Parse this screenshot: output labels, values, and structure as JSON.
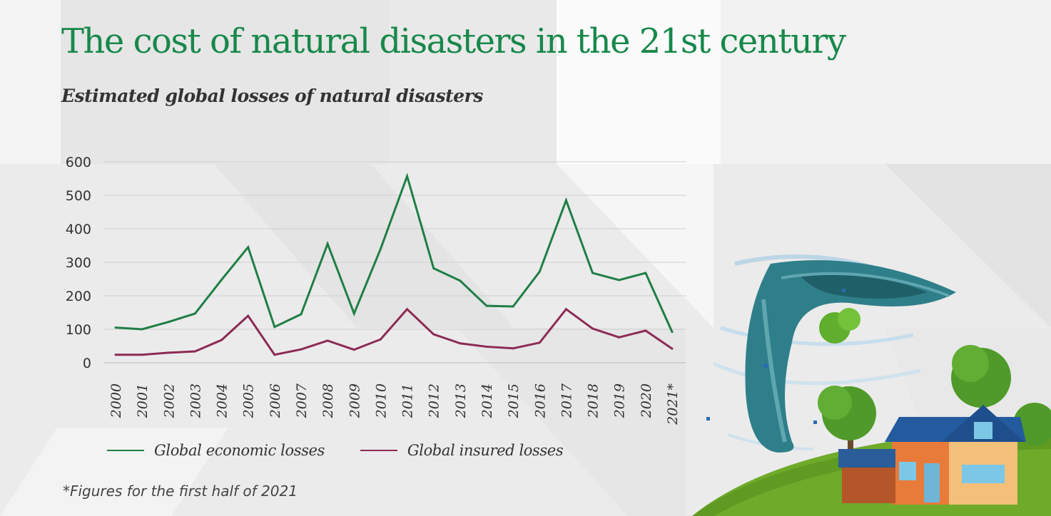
{
  "header": {
    "title": "The cost of natural disasters in the 21st century",
    "subtitle": "Estimated global losses of natural disasters"
  },
  "footnote": "*Figures for the first half of 2021",
  "colors": {
    "economic": "#1f7f45",
    "insured": "#8c2b55",
    "title": "#17884a",
    "grid": "#cfcfcf",
    "text": "#333333"
  },
  "chart_data": {
    "type": "line",
    "title": "",
    "xlabel": "",
    "ylabel": "",
    "categories": [
      "2000",
      "2001",
      "2002",
      "2003",
      "2004",
      "2005",
      "2006",
      "2007",
      "2008",
      "2009",
      "2010",
      "2011",
      "2012",
      "2013",
      "2014",
      "2015",
      "2016",
      "2017",
      "2018",
      "2019",
      "2020",
      "2021*"
    ],
    "ylim": [
      0,
      600
    ],
    "yticks": [
      0,
      100,
      200,
      300,
      400,
      500,
      600
    ],
    "grid": true,
    "legend_position": "bottom",
    "series": [
      {
        "name": "Global economic losses",
        "color": "#1f7f45",
        "values": [
          105,
          100,
          122,
          147,
          248,
          345,
          107,
          145,
          355,
          147,
          340,
          557,
          282,
          245,
          170,
          168,
          272,
          485,
          268,
          247,
          268,
          92
        ]
      },
      {
        "name": "Global insured losses",
        "color": "#8c2b55",
        "values": [
          24,
          24,
          30,
          34,
          68,
          140,
          24,
          40,
          66,
          39,
          70,
          160,
          85,
          58,
          48,
          43,
          60,
          160,
          102,
          76,
          96,
          42
        ]
      }
    ]
  }
}
